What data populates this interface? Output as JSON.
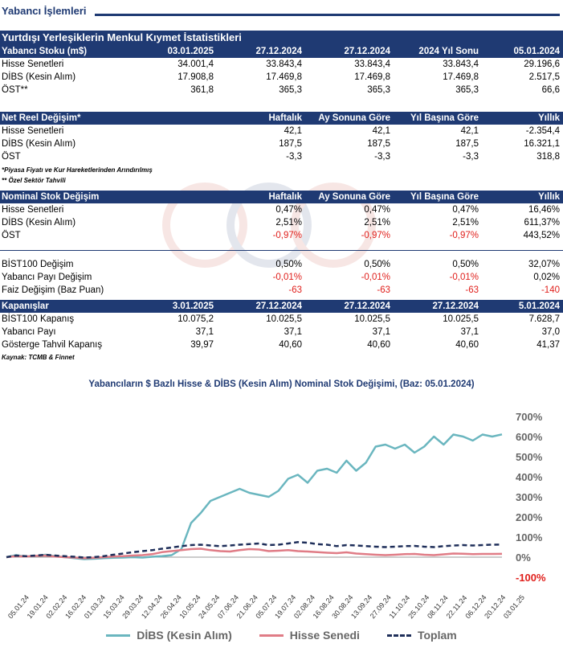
{
  "header": {
    "title": "Yabancı İşlemleri"
  },
  "main_title": "Yurtdışı Yerleşiklerin Menkul Kıymet İstatistikleri",
  "stock": {
    "headers": [
      "Yabancı Stoku (m$)",
      "03.01.2025",
      "27.12.2024",
      "27.12.2024",
      "2024 Yıl Sonu",
      "05.01.2024"
    ],
    "rows": [
      {
        "label": "Hisse Senetleri",
        "values": [
          "34.001,4",
          "33.843,4",
          "33.843,4",
          "33.843,4",
          "29.196,6"
        ]
      },
      {
        "label": "DİBS (Kesin Alım)",
        "values": [
          "17.908,8",
          "17.469,8",
          "17.469,8",
          "17.469,8",
          "2.517,5"
        ]
      },
      {
        "label": "ÖST**",
        "values": [
          "361,8",
          "365,3",
          "365,3",
          "365,3",
          "66,6"
        ]
      }
    ]
  },
  "real_change": {
    "headers": [
      "Net Reel Değişim*",
      "Haftalık",
      "Ay Sonuna Göre",
      "Yıl Başına Göre",
      "Yıllık"
    ],
    "rows": [
      {
        "label": "Hisse Senetleri",
        "values": [
          "42,1",
          "42,1",
          "42,1",
          "-2.354,4"
        ]
      },
      {
        "label": "DİBS (Kesin Alım)",
        "values": [
          "187,5",
          "187,5",
          "187,5",
          "16.321,1"
        ]
      },
      {
        "label": "ÖST",
        "values": [
          "-3,3",
          "-3,3",
          "-3,3",
          "318,8"
        ]
      }
    ]
  },
  "notes": {
    "note1": "*Piyasa Fiyatı ve Kur Hareketlerinden Arındırılmış",
    "note2": "** Özel Sektör Tahvili",
    "source": "Kaynak: TCMB & Finnet"
  },
  "nominal_change": {
    "headers": [
      "Nominal Stok Değişim",
      "Haftalık",
      "Ay Sonuna Göre",
      "Yıl Başına Göre",
      "Yıllık"
    ],
    "rows": [
      {
        "label": "Hisse Senetleri",
        "values": [
          "0,47%",
          "0,47%",
          "0,47%",
          "16,46%"
        ]
      },
      {
        "label": "DİBS (Kesin Alım)",
        "values": [
          "2,51%",
          "2,51%",
          "2,51%",
          "611,37%"
        ]
      },
      {
        "label": "ÖST",
        "values": [
          "-0,97%",
          "-0,97%",
          "-0,97%",
          "443,52%"
        ]
      }
    ]
  },
  "bist_change": {
    "rows": [
      {
        "label": "BİST100 Değişim",
        "values": [
          "0,50%",
          "0,50%",
          "0,50%",
          "32,07%"
        ]
      },
      {
        "label": "Yabancı Payı Değişim",
        "values": [
          "-0,01%",
          "-0,01%",
          "-0,01%",
          "0,02%"
        ]
      },
      {
        "label": "Faiz Değişim (Baz Puan)",
        "values": [
          "-63",
          "-63",
          "-63",
          "-140"
        ]
      }
    ]
  },
  "closings": {
    "headers": [
      "Kapanışlar",
      "3.01.2025",
      "27.12.2024",
      "27.12.2024",
      "27.12.2024",
      "5.01.2024"
    ],
    "rows": [
      {
        "label": "BİST100 Kapanış",
        "values": [
          "10.075,2",
          "10.025,5",
          "10.025,5",
          "10.025,5",
          "7.628,7"
        ]
      },
      {
        "label": "Yabancı Payı",
        "values": [
          "37,1",
          "37,1",
          "37,1",
          "37,1",
          "37,0"
        ]
      },
      {
        "label": "Gösterge Tahvil Kapanış",
        "values": [
          "39,97",
          "40,60",
          "40,60",
          "40,60",
          "41,37"
        ]
      }
    ]
  },
  "colors": {
    "navy": "#1f3a73",
    "negative": "#e0201c",
    "dibs": "#6ab6bf",
    "hisse": "#e07c86",
    "toplam": "#1f2f5a"
  },
  "chart_data": {
    "type": "line",
    "title": "Yabancıların $ Bazlı Hisse & DİBS (Kesin Alım) Nominal Stok Değişimi, (Baz: 05.01.2024)",
    "x_ticks": [
      "05.01.24",
      "19.01.24",
      "02.02.24",
      "16.02.24",
      "01.03.24",
      "15.03.24",
      "29.03.24",
      "12.04.24",
      "26.04.24",
      "10.05.24",
      "24.05.24",
      "07.06.24",
      "21.06.24",
      "05.07.24",
      "19.07.24",
      "02.08.24",
      "16.08.24",
      "30.08.24",
      "13.09.24",
      "27.09.24",
      "11.10.24",
      "25.10.24",
      "08.11.24",
      "22.11.24",
      "06.12.24",
      "20.12.24",
      "03.01.25"
    ],
    "y_ticks": [
      "700%",
      "600%",
      "500%",
      "400%",
      "300%",
      "200%",
      "100%",
      "0%",
      "-100%"
    ],
    "ylim": [
      -100,
      700
    ],
    "series": [
      {
        "name": "DİBS (Kesin Alım)",
        "values": [
          0,
          10,
          3,
          5,
          12,
          5,
          0,
          -5,
          -10,
          -8,
          -5,
          -3,
          -2,
          0,
          -2,
          2,
          5,
          10,
          40,
          170,
          220,
          280,
          300,
          320,
          340,
          320,
          310,
          300,
          330,
          390,
          410,
          370,
          430,
          440,
          420,
          480,
          430,
          470,
          550,
          560,
          540,
          560,
          520,
          550,
          600,
          560,
          610,
          600,
          580,
          610,
          600,
          611
        ]
      },
      {
        "name": "Hisse Senedi",
        "values": [
          0,
          5,
          3,
          6,
          8,
          3,
          0,
          -2,
          -5,
          -3,
          0,
          3,
          5,
          8,
          10,
          15,
          25,
          30,
          35,
          40,
          42,
          35,
          30,
          28,
          35,
          40,
          38,
          30,
          32,
          35,
          30,
          28,
          25,
          22,
          20,
          24,
          18,
          15,
          12,
          10,
          12,
          15,
          16,
          12,
          10,
          14,
          18,
          17,
          15,
          16,
          16,
          16.5
        ]
      },
      {
        "name": "Toplam",
        "values": [
          0,
          8,
          5,
          8,
          12,
          8,
          5,
          2,
          -2,
          0,
          5,
          12,
          18,
          25,
          30,
          35,
          42,
          48,
          55,
          60,
          62,
          58,
          55,
          58,
          62,
          65,
          68,
          60,
          62,
          68,
          75,
          72,
          65,
          62,
          55,
          60,
          58,
          55,
          52,
          50,
          52,
          55,
          56,
          52,
          50,
          55,
          58,
          60,
          58,
          60,
          62,
          63
        ]
      }
    ]
  }
}
